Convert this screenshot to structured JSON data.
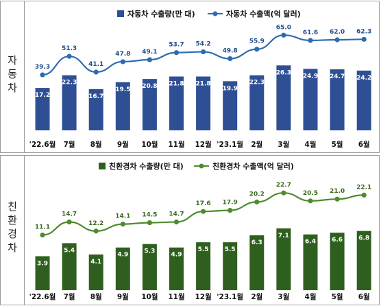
{
  "panels": [
    {
      "side_label": "자동차",
      "colors": {
        "bar": "#2f4f95",
        "line": "#2f6bb0",
        "bar_label": "#ffffff",
        "line_label": "#1f4d8c"
      }
    },
    {
      "side_label": "친환경차",
      "colors": {
        "bar": "#2f5f1e",
        "line": "#4f8a2e",
        "bar_label": "#ffffff",
        "line_label": "#3a6b20"
      }
    }
  ],
  "chart_data": [
    {
      "type": "bar+line",
      "categories": [
        "'22.6월",
        "7월",
        "8월",
        "9월",
        "10월",
        "11월",
        "12월",
        "'23.1월",
        "2월",
        "3월",
        "4월",
        "5월",
        "6월"
      ],
      "series": [
        {
          "name": "자동차 수출량(만 대)",
          "kind": "bar",
          "values": [
            17.2,
            22.3,
            16.7,
            19.5,
            20.8,
            21.8,
            21.8,
            19.9,
            22.3,
            26.3,
            24.9,
            24.7,
            24.2
          ]
        },
        {
          "name": "자동차 수출액(억 달러)",
          "kind": "line",
          "values": [
            39.3,
            51.3,
            41.1,
            47.8,
            49.1,
            53.7,
            54.2,
            49.8,
            55.9,
            65.0,
            61.6,
            62.0,
            62.3
          ]
        }
      ],
      "legend": "top",
      "grid": false
    },
    {
      "type": "bar+line",
      "categories": [
        "'22.6월",
        "7월",
        "8월",
        "9월",
        "10월",
        "11월",
        "12월",
        "'23.1월",
        "2월",
        "3월",
        "4월",
        "5월",
        "6월"
      ],
      "series": [
        {
          "name": "친환경차 수출량(만 대)",
          "kind": "bar",
          "values": [
            3.9,
            5.4,
            4.1,
            4.9,
            5.3,
            4.9,
            5.5,
            5.5,
            6.3,
            7.1,
            6.4,
            6.6,
            6.8
          ]
        },
        {
          "name": "친환경차 수출액(억 달러)",
          "kind": "line",
          "values": [
            11.1,
            14.7,
            12.2,
            14.1,
            14.5,
            14.7,
            17.6,
            17.9,
            20.2,
            22.7,
            20.5,
            21.0,
            22.1
          ]
        }
      ],
      "legend": "top",
      "grid": false
    }
  ]
}
